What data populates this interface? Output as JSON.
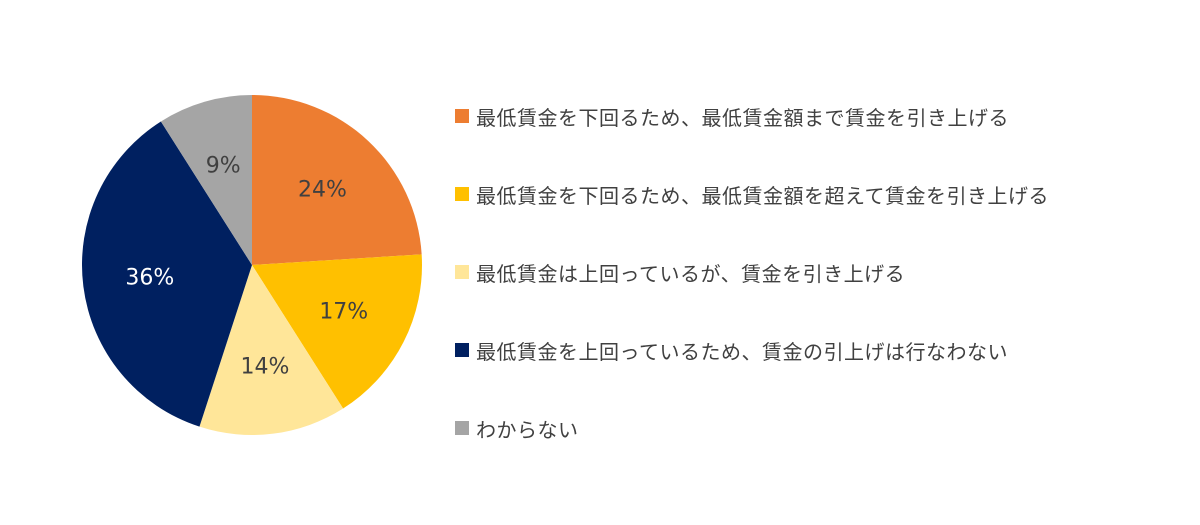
{
  "chart_data": {
    "type": "pie",
    "unit": "%",
    "start_angle_deg": 0,
    "direction": "clockwise",
    "categories": [
      "最低賃金を下回るため、最低賃金額まで賃金を引き上げる",
      "最低賃金を下回るため、最低賃金額を超えて賃金を引き上げる",
      "最低賃金は上回っているが、賃金を引き上げる",
      "最低賃金を上回っているため、賃金の引上げは行なわない",
      "わからない"
    ],
    "values": [
      24,
      17,
      14,
      36,
      9
    ],
    "labels": [
      "24%",
      "17%",
      "14%",
      "36%",
      "9%"
    ],
    "colors": [
      "#ED7D31",
      "#FFC000",
      "#FFE699",
      "#002060",
      "#A5A5A5"
    ],
    "label_colors": [
      "#404040",
      "#404040",
      "#404040",
      "#FFFFFF",
      "#404040"
    ],
    "legend_position": "right"
  }
}
